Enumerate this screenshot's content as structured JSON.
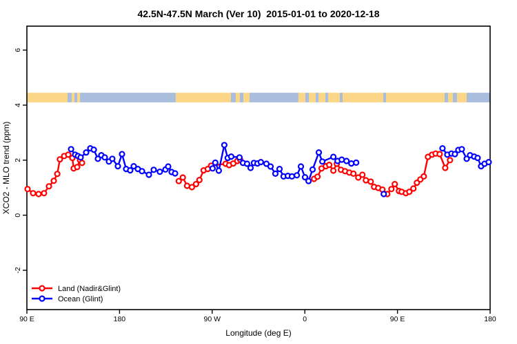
{
  "title": "42.5N-47.5N March (Ver 10)  2015-01-01 to 2020-12-18",
  "chart_data": {
    "type": "line",
    "title": "42.5N-47.5N March (Ver 10)  2015-01-01 to 2020-12-18",
    "xlabel": "Longitude (deg E)",
    "ylabel": "XCO2 - MLO trend (ppm)",
    "xlim": [
      90,
      540
    ],
    "ylim": [
      -3.43,
      6.87
    ],
    "grid": "off",
    "legend_position": "bottom-left",
    "x_ticks": [
      {
        "value": 90,
        "label": "90 E"
      },
      {
        "value": 180,
        "label": "180"
      },
      {
        "value": 270,
        "label": "90 W"
      },
      {
        "value": 360,
        "label": "0"
      },
      {
        "value": 450,
        "label": "90 E"
      },
      {
        "value": 540,
        "label": "180"
      }
    ],
    "y_ticks": [
      {
        "value": -2,
        "label": "-2"
      },
      {
        "value": 0,
        "label": "0"
      },
      {
        "value": 2,
        "label": "2"
      },
      {
        "value": 4,
        "label": "4"
      },
      {
        "value": 6,
        "label": "6"
      }
    ],
    "legend": [
      {
        "name": "Land (Nadir&Glint)",
        "color": "#ff0000"
      },
      {
        "name": "Ocean (Glint)",
        "color": "#0000ff"
      }
    ],
    "series": [
      {
        "name": "Land (Nadir&Glint)",
        "color": "#ff0000",
        "marker": "open-circle",
        "segments": [
          [
            [
              90.7,
              0.95
            ],
            [
              96.0,
              0.8
            ],
            [
              101.4,
              0.77
            ],
            [
              106.7,
              0.8
            ],
            [
              111.4,
              1.05
            ],
            [
              116.1,
              1.25
            ],
            [
              119.5,
              1.5
            ],
            [
              122.1,
              2.03
            ],
            [
              126.2,
              2.15
            ],
            [
              130.2,
              2.2
            ],
            [
              134.2,
              2.08
            ],
            [
              135.5,
              1.7
            ],
            [
              138.9,
              1.75
            ],
            [
              141.6,
              2.0
            ],
            [
              143.6,
              1.9
            ]
          ],
          [
            [
              237.5,
              1.24
            ],
            [
              241.5,
              1.37
            ],
            [
              245.6,
              1.07
            ],
            [
              250.3,
              1.02
            ],
            [
              254.3,
              1.13
            ],
            [
              257.6,
              1.28
            ],
            [
              261.7,
              1.63
            ],
            [
              265.7,
              1.68
            ],
            [
              269.0,
              1.8
            ],
            [
              283.1,
              1.87
            ],
            [
              286.5,
              1.82
            ],
            [
              290.5,
              1.88
            ],
            [
              294.5,
              1.97
            ],
            [
              297.2,
              2.02
            ]
          ],
          [
            [
              369.0,
              1.32
            ],
            [
              372.3,
              1.4
            ],
            [
              376.3,
              1.7
            ],
            [
              380.4,
              1.78
            ],
            [
              383.7,
              1.83
            ],
            [
              387.7,
              1.62
            ],
            [
              391.1,
              1.87
            ],
            [
              395.1,
              1.65
            ],
            [
              399.1,
              1.6
            ],
            [
              403.2,
              1.55
            ],
            [
              407.2,
              1.51
            ],
            [
              411.9,
              1.37
            ],
            [
              415.9,
              1.47
            ],
            [
              419.3,
              1.27
            ],
            [
              424.0,
              1.22
            ],
            [
              427.3,
              1.03
            ],
            [
              431.3,
              0.99
            ],
            [
              435.4,
              0.93
            ],
            [
              440.1,
              0.77
            ],
            [
              444.1,
              0.95
            ],
            [
              447.4,
              1.13
            ],
            [
              451.5,
              0.88
            ],
            [
              454.1,
              0.85
            ],
            [
              458.2,
              0.8
            ],
            [
              461.5,
              0.85
            ],
            [
              465.5,
              0.97
            ],
            [
              468.9,
              1.18
            ],
            [
              472.2,
              1.3
            ],
            [
              475.6,
              1.41
            ],
            [
              479.6,
              2.12
            ],
            [
              483.6,
              2.2
            ],
            [
              487.0,
              2.24
            ],
            [
              491.0,
              2.22
            ],
            [
              496.4,
              1.72
            ],
            [
              501.0,
              2.0
            ]
          ]
        ]
      },
      {
        "name": "Ocean (Glint)",
        "color": "#0000ff",
        "marker": "open-circle",
        "segments": [
          [
            [
              132.9,
              2.4
            ],
            [
              136.9,
              2.2
            ],
            [
              139.6,
              2.15
            ],
            [
              142.2,
              2.1
            ],
            [
              147.6,
              2.28
            ],
            [
              151.6,
              2.43
            ],
            [
              155.0,
              2.38
            ],
            [
              159.0,
              2.05
            ],
            [
              162.3,
              2.18
            ],
            [
              165.7,
              2.1
            ],
            [
              169.7,
              1.95
            ],
            [
              173.0,
              2.05
            ],
            [
              178.4,
              1.78
            ],
            [
              182.4,
              2.22
            ],
            [
              186.4,
              1.68
            ],
            [
              190.4,
              1.63
            ],
            [
              193.8,
              1.78
            ],
            [
              197.8,
              1.68
            ],
            [
              201.8,
              1.6
            ],
            [
              208.5,
              1.47
            ],
            [
              213.2,
              1.65
            ],
            [
              219.2,
              1.58
            ],
            [
              224.6,
              1.66
            ],
            [
              227.3,
              1.77
            ],
            [
              230.6,
              1.57
            ],
            [
              234.0,
              1.52
            ]
          ],
          [
            [
              270.4,
              1.7
            ],
            [
              273.0,
              1.91
            ],
            [
              276.4,
              1.62
            ],
            [
              281.8,
              2.55
            ],
            [
              285.1,
              2.08
            ],
            [
              288.5,
              2.13
            ],
            [
              296.5,
              2.1
            ],
            [
              299.9,
              1.9
            ],
            [
              303.9,
              1.87
            ],
            [
              307.3,
              1.72
            ],
            [
              310.6,
              1.9
            ],
            [
              314.0,
              1.88
            ],
            [
              317.3,
              1.93
            ],
            [
              322.7,
              1.87
            ],
            [
              326.7,
              1.77
            ],
            [
              331.4,
              1.51
            ],
            [
              335.4,
              1.68
            ],
            [
              339.4,
              1.41
            ],
            [
              343.5,
              1.43
            ],
            [
              347.5,
              1.41
            ],
            [
              352.2,
              1.45
            ],
            [
              356.2,
              1.77
            ],
            [
              360.2,
              1.38
            ],
            [
              363.6,
              1.24
            ],
            [
              367.6,
              1.66
            ],
            [
              373.6,
              2.28
            ],
            [
              377.0,
              1.95
            ],
            [
              387.7,
              2.12
            ],
            [
              391.8,
              1.97
            ],
            [
              395.8,
              2.02
            ],
            [
              400.5,
              1.97
            ],
            [
              405.2,
              1.88
            ],
            [
              409.9,
              1.91
            ]
          ],
          [
            [
              436.7,
              0.77
            ]
          ],
          [
            [
              493.7,
              2.43
            ],
            [
              498.4,
              2.2
            ],
            [
              502.4,
              2.24
            ],
            [
              505.8,
              2.22
            ],
            [
              509.1,
              2.37
            ],
            [
              512.5,
              2.4
            ],
            [
              517.2,
              2.05
            ],
            [
              520.5,
              2.18
            ],
            [
              524.5,
              2.13
            ],
            [
              527.9,
              2.08
            ],
            [
              531.2,
              1.78
            ],
            [
              534.6,
              1.87
            ],
            [
              538.6,
              1.93
            ]
          ]
        ]
      }
    ],
    "surface_strip": {
      "description": "land/ocean surface type band",
      "y_range": [
        4.1,
        4.45
      ],
      "land_color": "#fbd687",
      "ocean_color": "#a9bedc",
      "segments": [
        {
          "from": 90.0,
          "to": 129.5,
          "type": "land"
        },
        {
          "from": 129.5,
          "to": 133.5,
          "type": "ocean"
        },
        {
          "from": 133.5,
          "to": 136.2,
          "type": "land"
        },
        {
          "from": 136.2,
          "to": 138.9,
          "type": "ocean"
        },
        {
          "from": 138.9,
          "to": 141.6,
          "type": "land"
        },
        {
          "from": 141.6,
          "to": 234.6,
          "type": "ocean"
        },
        {
          "from": 234.6,
          "to": 288.2,
          "type": "land"
        },
        {
          "from": 288.2,
          "to": 292.9,
          "type": "ocean"
        },
        {
          "from": 292.9,
          "to": 296.9,
          "type": "land"
        },
        {
          "from": 296.9,
          "to": 300.3,
          "type": "ocean"
        },
        {
          "from": 300.3,
          "to": 306.3,
          "type": "land"
        },
        {
          "from": 306.3,
          "to": 353.8,
          "type": "ocean"
        },
        {
          "from": 353.8,
          "to": 360.5,
          "type": "land"
        },
        {
          "from": 360.5,
          "to": 363.9,
          "type": "ocean"
        },
        {
          "from": 363.9,
          "to": 370.6,
          "type": "land"
        },
        {
          "from": 370.6,
          "to": 373.3,
          "type": "ocean"
        },
        {
          "from": 373.3,
          "to": 380.0,
          "type": "land"
        },
        {
          "from": 380.0,
          "to": 382.6,
          "type": "ocean"
        },
        {
          "from": 382.6,
          "to": 394.0,
          "type": "land"
        },
        {
          "from": 394.0,
          "to": 396.7,
          "type": "ocean"
        },
        {
          "from": 396.7,
          "to": 436.2,
          "type": "land"
        },
        {
          "from": 436.2,
          "to": 438.9,
          "type": "ocean"
        },
        {
          "from": 438.9,
          "to": 495.8,
          "type": "land"
        },
        {
          "from": 495.8,
          "to": 499.2,
          "type": "ocean"
        },
        {
          "from": 499.2,
          "to": 503.8,
          "type": "land"
        },
        {
          "from": 503.8,
          "to": 507.8,
          "type": "ocean"
        },
        {
          "from": 507.8,
          "to": 517.2,
          "type": "land"
        },
        {
          "from": 517.2,
          "to": 540.0,
          "type": "ocean"
        }
      ]
    }
  }
}
